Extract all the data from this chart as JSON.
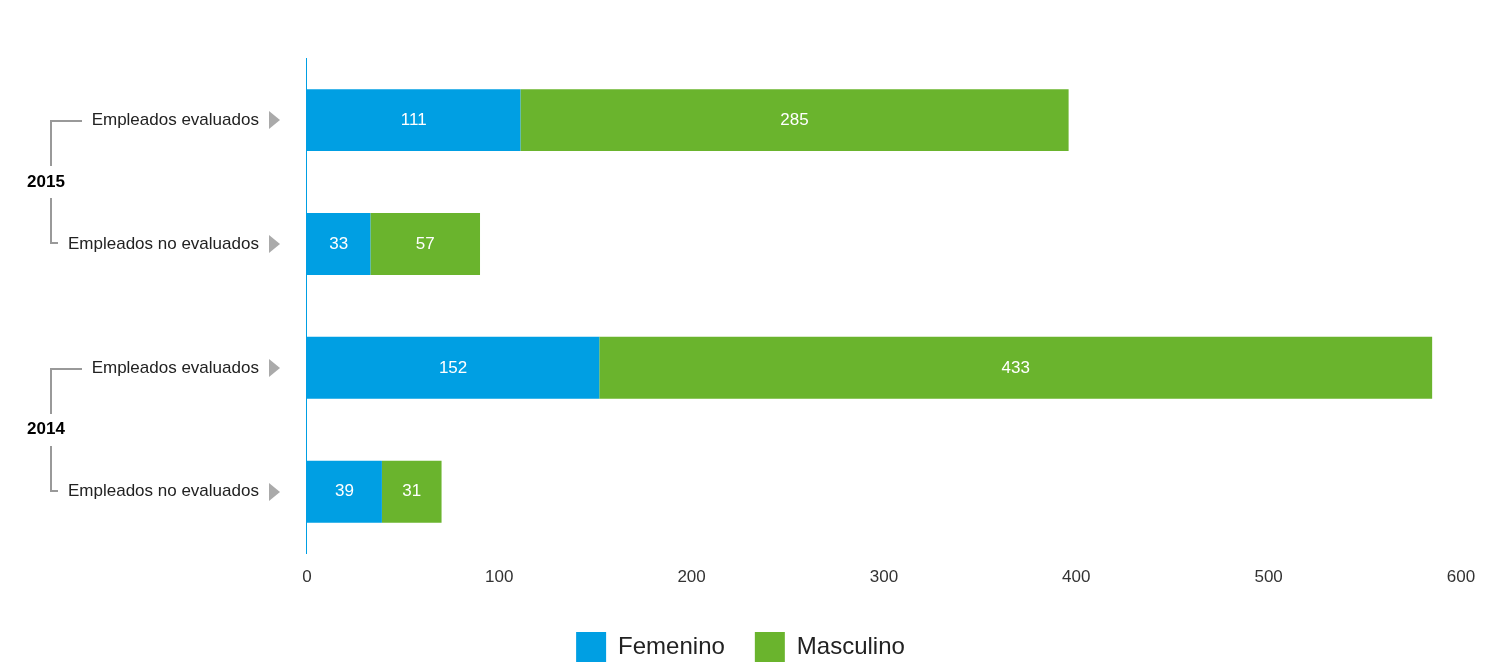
{
  "chart_data": {
    "type": "bar",
    "orientation": "horizontal",
    "stacked": true,
    "categories": [
      "Empleados evaluados",
      "Empleados no evaluados",
      "Empleados evaluados",
      "Empleados no evaluados"
    ],
    "series": [
      {
        "name": "Femenino",
        "color": "#009fe3",
        "values": [
          111,
          33,
          152,
          39
        ]
      },
      {
        "name": "Masculino",
        "color": "#6ab42d",
        "values": [
          285,
          57,
          433,
          31
        ]
      }
    ],
    "xlim": [
      0,
      600
    ],
    "xticks": [
      0,
      100,
      200,
      300,
      400,
      500,
      600
    ],
    "annotations": [
      "2015",
      "2014"
    ],
    "data_labels": true,
    "grid": false,
    "legend": "bottom"
  }
}
